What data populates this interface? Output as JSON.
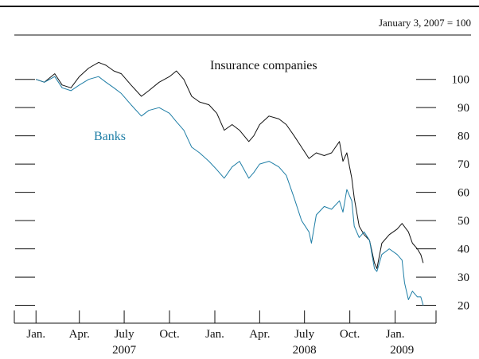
{
  "chart_data": {
    "type": "line",
    "note": "January 3, 2007 = 100",
    "x_tick_labels": [
      "Jan.",
      "Apr.",
      "July",
      "Oct.",
      "Jan.",
      "Apr.",
      "July",
      "Oct.",
      "Jan."
    ],
    "x_tick_dates": [
      "2007-01-03",
      "2007-04-01",
      "2007-07-01",
      "2007-10-01",
      "2008-01-01",
      "2008-04-01",
      "2008-07-01",
      "2008-10-01",
      "2009-01-01"
    ],
    "year_labels": [
      {
        "label": "2007",
        "date": "2007-07-01"
      },
      {
        "label": "2008",
        "date": "2008-07-01"
      },
      {
        "label": "2009",
        "date": "2009-01-15"
      }
    ],
    "x_range": [
      "2006-11-20",
      "2009-03-25"
    ],
    "y_ticks": [
      20,
      30,
      40,
      50,
      60,
      70,
      80,
      90,
      100
    ],
    "y_tick_labels": [
      "20",
      "30",
      "40",
      "50",
      "60",
      "70",
      "80",
      "90",
      "100"
    ],
    "ylim": [
      14.8,
      115.7
    ],
    "grid": false,
    "series": [
      {
        "name": "Insurance companies",
        "color": "#111111",
        "points": [
          [
            "2007-01-03",
            100
          ],
          [
            "2007-01-20",
            99
          ],
          [
            "2007-02-10",
            102
          ],
          [
            "2007-02-25",
            98
          ],
          [
            "2007-03-15",
            97
          ],
          [
            "2007-04-01",
            101
          ],
          [
            "2007-04-20",
            104
          ],
          [
            "2007-05-10",
            106
          ],
          [
            "2007-05-25",
            105
          ],
          [
            "2007-06-10",
            103
          ],
          [
            "2007-06-25",
            102
          ],
          [
            "2007-07-15",
            98
          ],
          [
            "2007-08-05",
            94
          ],
          [
            "2007-08-20",
            96
          ],
          [
            "2007-09-10",
            99
          ],
          [
            "2007-10-01",
            101
          ],
          [
            "2007-10-15",
            103
          ],
          [
            "2007-10-30",
            100
          ],
          [
            "2007-11-15",
            94
          ],
          [
            "2007-12-01",
            92
          ],
          [
            "2007-12-20",
            91
          ],
          [
            "2008-01-05",
            88
          ],
          [
            "2008-01-20",
            82
          ],
          [
            "2008-02-05",
            84
          ],
          [
            "2008-02-20",
            82
          ],
          [
            "2008-03-10",
            78
          ],
          [
            "2008-03-20",
            80
          ],
          [
            "2008-04-01",
            84
          ],
          [
            "2008-04-20",
            87
          ],
          [
            "2008-05-10",
            86
          ],
          [
            "2008-05-25",
            84
          ],
          [
            "2008-06-10",
            80
          ],
          [
            "2008-06-25",
            76
          ],
          [
            "2008-07-10",
            72
          ],
          [
            "2008-07-25",
            74
          ],
          [
            "2008-08-10",
            73
          ],
          [
            "2008-08-25",
            74
          ],
          [
            "2008-09-10",
            78
          ],
          [
            "2008-09-17",
            71
          ],
          [
            "2008-09-25",
            74
          ],
          [
            "2008-10-05",
            65
          ],
          [
            "2008-10-10",
            58
          ],
          [
            "2008-10-20",
            48
          ],
          [
            "2008-10-30",
            45
          ],
          [
            "2008-11-10",
            43
          ],
          [
            "2008-11-20",
            35
          ],
          [
            "2008-11-25",
            33
          ],
          [
            "2008-12-05",
            42
          ],
          [
            "2008-12-20",
            45
          ],
          [
            "2009-01-05",
            47
          ],
          [
            "2009-01-15",
            49
          ],
          [
            "2009-01-28",
            46
          ],
          [
            "2009-02-05",
            42
          ],
          [
            "2009-02-15",
            40
          ],
          [
            "2009-02-22",
            38
          ],
          [
            "2009-02-27",
            35
          ]
        ]
      },
      {
        "name": "Banks",
        "color": "#1f7ea6",
        "points": [
          [
            "2007-01-03",
            100
          ],
          [
            "2007-01-20",
            99
          ],
          [
            "2007-02-10",
            101
          ],
          [
            "2007-02-25",
            97
          ],
          [
            "2007-03-15",
            96
          ],
          [
            "2007-04-01",
            98
          ],
          [
            "2007-04-20",
            100
          ],
          [
            "2007-05-10",
            101
          ],
          [
            "2007-05-25",
            99
          ],
          [
            "2007-06-10",
            97
          ],
          [
            "2007-06-25",
            95
          ],
          [
            "2007-07-15",
            91
          ],
          [
            "2007-08-05",
            87
          ],
          [
            "2007-08-20",
            89
          ],
          [
            "2007-09-10",
            90
          ],
          [
            "2007-10-01",
            88
          ],
          [
            "2007-10-15",
            85
          ],
          [
            "2007-10-30",
            82
          ],
          [
            "2007-11-15",
            76
          ],
          [
            "2007-12-01",
            74
          ],
          [
            "2007-12-20",
            71
          ],
          [
            "2008-01-05",
            68
          ],
          [
            "2008-01-20",
            65
          ],
          [
            "2008-02-05",
            69
          ],
          [
            "2008-02-20",
            71
          ],
          [
            "2008-03-10",
            65
          ],
          [
            "2008-03-20",
            67
          ],
          [
            "2008-04-01",
            70
          ],
          [
            "2008-04-20",
            71
          ],
          [
            "2008-05-10",
            69
          ],
          [
            "2008-05-25",
            66
          ],
          [
            "2008-06-10",
            58
          ],
          [
            "2008-06-25",
            50
          ],
          [
            "2008-07-10",
            46
          ],
          [
            "2008-07-15",
            42
          ],
          [
            "2008-07-25",
            52
          ],
          [
            "2008-08-10",
            55
          ],
          [
            "2008-08-25",
            54
          ],
          [
            "2008-09-10",
            57
          ],
          [
            "2008-09-17",
            53
          ],
          [
            "2008-09-25",
            61
          ],
          [
            "2008-10-05",
            57
          ],
          [
            "2008-10-10",
            48
          ],
          [
            "2008-10-20",
            44
          ],
          [
            "2008-10-30",
            46
          ],
          [
            "2008-11-10",
            43
          ],
          [
            "2008-11-20",
            33
          ],
          [
            "2008-11-25",
            32
          ],
          [
            "2008-12-05",
            38
          ],
          [
            "2008-12-20",
            40
          ],
          [
            "2009-01-05",
            38
          ],
          [
            "2009-01-15",
            36
          ],
          [
            "2009-01-20",
            28
          ],
          [
            "2009-01-28",
            22
          ],
          [
            "2009-02-05",
            25
          ],
          [
            "2009-02-15",
            23
          ],
          [
            "2009-02-22",
            23
          ],
          [
            "2009-02-27",
            20
          ]
        ]
      }
    ]
  }
}
